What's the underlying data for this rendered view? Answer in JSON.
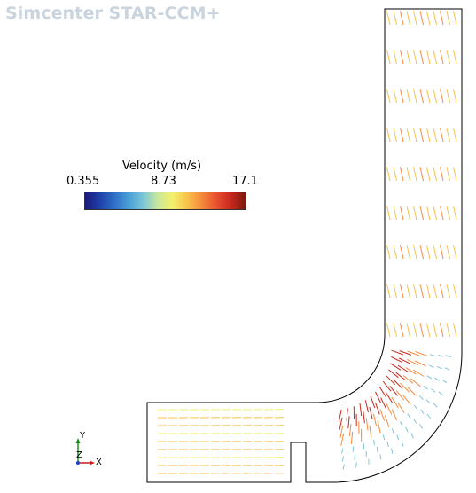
{
  "app": {
    "watermark": "Simcenter STAR-CCM+"
  },
  "scalar_bar": {
    "title": "Velocity (m/s)",
    "min_label": "0.355",
    "mid_label": "8.73",
    "max_label": "17.1",
    "colormap": [
      "#1a1a7a",
      "#1f3fa8",
      "#2f6fc7",
      "#4a9fd6",
      "#7cc6d8",
      "#c9e89a",
      "#f3f06a",
      "#f8c24a",
      "#f58a3c",
      "#e8502e",
      "#c8281e",
      "#7a1a10"
    ]
  },
  "triad": {
    "x_label": "X",
    "y_label": "Y",
    "z_label": "Z",
    "x_color": "#c81e1e",
    "y_color": "#1e8a1e",
    "z_color": "#1e3cc8"
  }
}
